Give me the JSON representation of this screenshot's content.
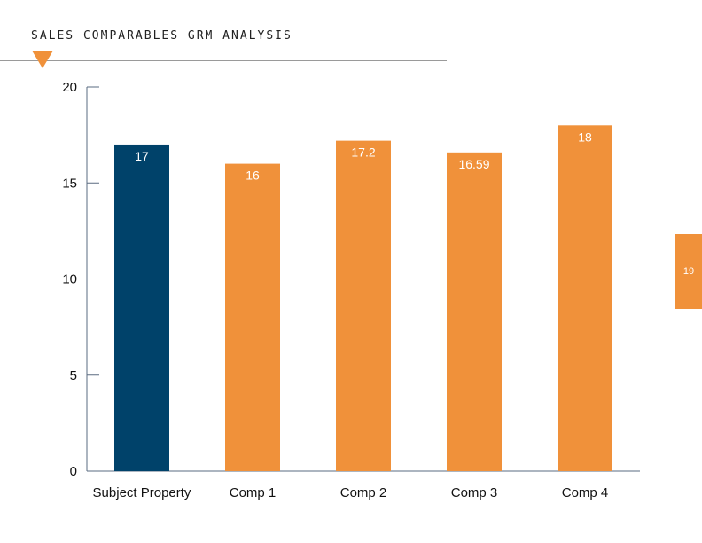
{
  "header": {
    "title": "SALES COMPARABLES GRM ANALYSIS"
  },
  "page_number": "19",
  "colors": {
    "accent": "#F0913A",
    "subject": "#00426A",
    "axis": "#5a6b80"
  },
  "chart_data": {
    "type": "bar",
    "categories": [
      "Subject Property",
      "Comp 1",
      "Comp 2",
      "Comp 3",
      "Comp 4"
    ],
    "values": [
      17,
      16,
      17.2,
      16.59,
      18
    ],
    "value_labels": [
      "17",
      "16",
      "17.2",
      "16.59",
      "18"
    ],
    "bar_colors": [
      "#00426A",
      "#F0913A",
      "#F0913A",
      "#F0913A",
      "#F0913A"
    ],
    "ylim": [
      0,
      20
    ],
    "yticks": [
      0,
      5,
      10,
      15,
      20
    ],
    "title": "",
    "xlabel": "",
    "ylabel": "",
    "grid": false,
    "legend": "none"
  }
}
